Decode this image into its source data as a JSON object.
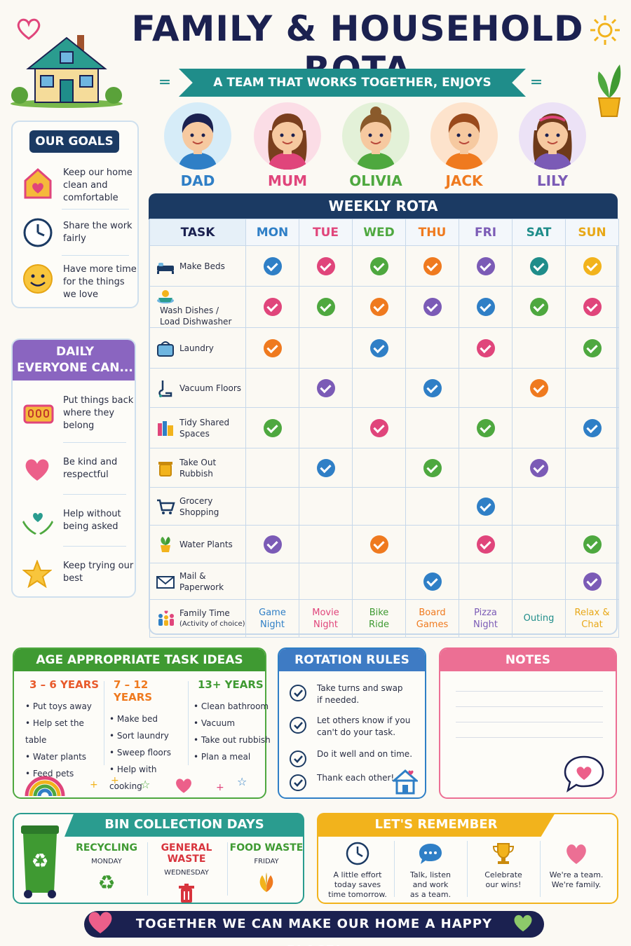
{
  "header": {
    "title": "FAMILY & HOUSEHOLD ROTA",
    "subtitle": "A TEAM THAT WORKS TOGETHER, ENJOYS TOGETHER!"
  },
  "goals": {
    "title": "OUR GOALS",
    "items": [
      {
        "icon": "house-heart-icon",
        "text": "Keep our home clean and comfortable"
      },
      {
        "icon": "clock-icon",
        "text": "Share the work fairly"
      },
      {
        "icon": "smiley-icon",
        "text": "Have more time for the things we love"
      }
    ]
  },
  "daily": {
    "title_line1": "DAILY",
    "title_line2": "EVERYONE CAN...",
    "items": [
      {
        "icon": "basket-icon",
        "text": "Put things back where they belong"
      },
      {
        "icon": "heart-icon",
        "text": "Be kind and respectful"
      },
      {
        "icon": "helping-hands-icon",
        "text": "Help without being asked"
      },
      {
        "icon": "star-icon",
        "text": "Keep trying our best"
      }
    ]
  },
  "family": [
    {
      "name": "DAD",
      "color": "#2f7fc6"
    },
    {
      "name": "MUM",
      "color": "#e0457b"
    },
    {
      "name": "OLIVIA",
      "color": "#4ea83f"
    },
    {
      "name": "JACK",
      "color": "#ef7a1f"
    },
    {
      "name": "LILY",
      "color": "#7b5bb6"
    }
  ],
  "rota": {
    "title": "WEEKLY ROTA",
    "task_header": "TASK",
    "days": [
      {
        "label": "MON",
        "color": "#2f7fc6"
      },
      {
        "label": "TUE",
        "color": "#e0457b"
      },
      {
        "label": "WED",
        "color": "#4ea83f"
      },
      {
        "label": "THU",
        "color": "#ef7a1f"
      },
      {
        "label": "FRI",
        "color": "#7b5bb6"
      },
      {
        "label": "SAT",
        "color": "#1f8d8a"
      },
      {
        "label": "SUN",
        "color": "#e8a818"
      }
    ],
    "tasks": [
      {
        "label1": "Make Beds",
        "label2": "",
        "icon": "bed-icon",
        "checks": [
          "#2f7fc6",
          "#e0457b",
          "#4ea83f",
          "#ef7a1f",
          "#7b5bb6",
          "#1f8d8a",
          "#f2b31c"
        ]
      },
      {
        "label1": "Wash Dishes /",
        "label2": "Load Dishwasher",
        "icon": "dishes-icon",
        "checks": [
          "#e0457b",
          "#4ea83f",
          "#ef7a1f",
          "#7b5bb6",
          "#2f7fc6",
          "#4ea83f",
          "#e0457b"
        ]
      },
      {
        "label1": "Laundry",
        "label2": "",
        "icon": "laundry-basket-icon",
        "checks": [
          "#ef7a1f",
          "",
          "#2f7fc6",
          "",
          "#e0457b",
          "",
          "#4ea83f"
        ]
      },
      {
        "label1": "Vacuum Floors",
        "label2": "",
        "icon": "vacuum-icon",
        "checks": [
          "",
          "#7b5bb6",
          "",
          "#2f7fc6",
          "",
          "#ef7a1f",
          ""
        ]
      },
      {
        "label1": "Tidy Shared",
        "label2": "Spaces",
        "icon": "books-icon",
        "checks": [
          "#4ea83f",
          "",
          "#e0457b",
          "",
          "#4ea83f",
          "",
          "#2f7fc6"
        ]
      },
      {
        "label1": "Take Out",
        "label2": "Rubbish",
        "icon": "bin-icon",
        "checks": [
          "",
          "#2f7fc6",
          "",
          "#4ea83f",
          "",
          "#7b5bb6",
          ""
        ]
      },
      {
        "label1": "Grocery",
        "label2": "Shopping",
        "icon": "cart-icon",
        "checks": [
          "",
          "",
          "",
          "",
          "#2f7fc6",
          "",
          ""
        ]
      },
      {
        "label1": "Water Plants",
        "label2": "",
        "icon": "plant-icon",
        "checks": [
          "#7b5bb6",
          "",
          "#ef7a1f",
          "",
          "#e0457b",
          "",
          "#4ea83f"
        ]
      },
      {
        "label1": "Mail &",
        "label2": "Paperwork",
        "icon": "envelope-icon",
        "checks": [
          "",
          "",
          "",
          "#2f7fc6",
          "",
          "",
          "#7b5bb6"
        ]
      }
    ],
    "family_time": {
      "label1": "Family Time",
      "label2": "(Activity of choice)",
      "icon": "family-icon",
      "activities": [
        {
          "l1": "Game",
          "l2": "Night",
          "color": "#2f7fc6"
        },
        {
          "l1": "Movie",
          "l2": "Night",
          "color": "#e0457b"
        },
        {
          "l1": "Bike",
          "l2": "Ride",
          "color": "#3f9a32"
        },
        {
          "l1": "Board",
          "l2": "Games",
          "color": "#ef7a1f"
        },
        {
          "l1": "Pizza",
          "l2": "Night",
          "color": "#7b5bb6"
        },
        {
          "l1": "Outing",
          "l2": "",
          "color": "#1f8d8a"
        },
        {
          "l1": "Relax &",
          "l2": "Chat",
          "color": "#e8a818"
        }
      ]
    }
  },
  "age_tasks": {
    "title": "AGE APPROPRIATE TASK IDEAS",
    "columns": [
      {
        "heading": "3 – 6 YEARS",
        "items": [
          "Put toys away",
          "Help set the table",
          "Water plants",
          "Feed pets"
        ]
      },
      {
        "heading": "7 – 12 YEARS",
        "items": [
          "Make bed",
          "Sort laundry",
          "Sweep floors",
          "Help with cooking"
        ]
      },
      {
        "heading": "13+ YEARS",
        "items": [
          "Clean bathroom",
          "Vacuum",
          "Take out rubbish",
          "Plan a meal"
        ]
      }
    ]
  },
  "rotation_rules": {
    "title": "ROTATION RULES",
    "items": [
      {
        "l1": "Take turns and swap",
        "l2": "if needed."
      },
      {
        "l1": "Let others know if you",
        "l2": "can't do your task."
      },
      {
        "l1": "Do it well and on time.",
        "l2": ""
      },
      {
        "l1": "Thank each other!",
        "l2": ""
      }
    ]
  },
  "notes": {
    "title": "NOTES"
  },
  "bins": {
    "title": "BIN COLLECTION DAYS",
    "items": [
      {
        "name": "RECYCLING",
        "day": "MONDAY",
        "color": "#3f9a32",
        "icon": "recycle-icon"
      },
      {
        "name": "GENERAL WASTE",
        "day": "WEDNESDAY",
        "color": "#d8343d",
        "icon": "trash-icon"
      },
      {
        "name": "FOOD WASTE",
        "day": "FRIDAY",
        "color": "#3f9a32",
        "icon": "leaf-icon"
      }
    ]
  },
  "remember": {
    "title": "LET'S REMEMBER",
    "items": [
      {
        "icon": "clock-icon",
        "l1": "A little effort",
        "l2": "today saves",
        "l3": "time tomorrow."
      },
      {
        "icon": "speech-bubble-icon",
        "l1": "Talk, listen",
        "l2": "and work",
        "l3": "as a team."
      },
      {
        "icon": "trophy-icon",
        "l1": "Celebrate",
        "l2": "our wins!",
        "l3": ""
      },
      {
        "icon": "heart-icon",
        "l1": "We're a team.",
        "l2": "We're family.",
        "l3": ""
      }
    ]
  },
  "footer": {
    "text": "TOGETHER WE CAN MAKE OUR HOME A HAPPY PLACE!"
  }
}
